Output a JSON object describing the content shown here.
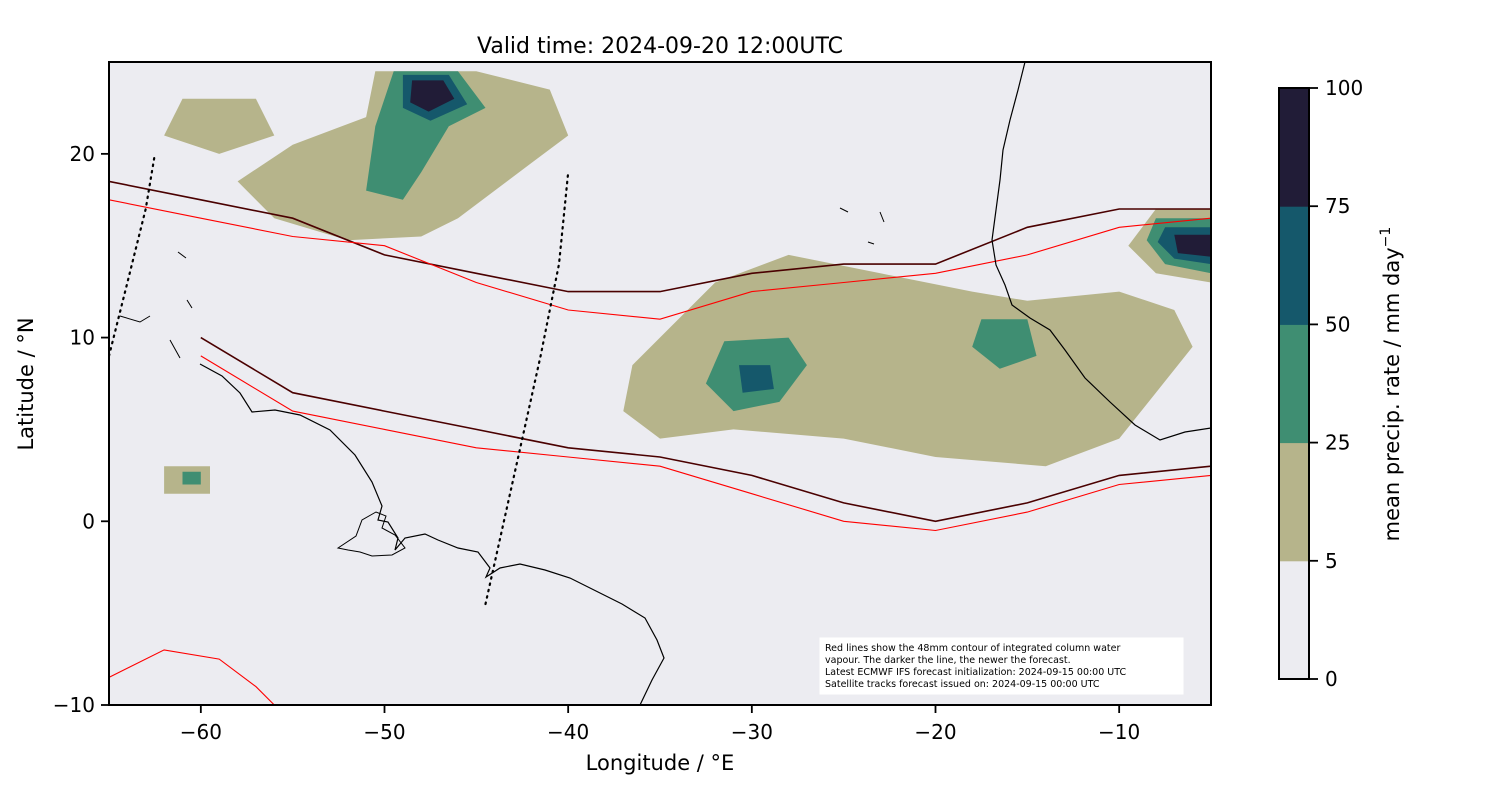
{
  "title": "Valid time: 2024-09-20 12:00UTC",
  "xlabel": "Longitude / °E",
  "ylabel": "Latitude / °N",
  "colorbar_label_main": "mean precip. rate / mm day",
  "colorbar_label_exp": "−1",
  "xlim": [
    -65,
    -5
  ],
  "ylim": [
    -10,
    25
  ],
  "x_ticks": [
    {
      "value": -60,
      "label": "−60"
    },
    {
      "value": -50,
      "label": "−50"
    },
    {
      "value": -40,
      "label": "−40"
    },
    {
      "value": -30,
      "label": "−30"
    },
    {
      "value": -20,
      "label": "−20"
    },
    {
      "value": -10,
      "label": "−10"
    }
  ],
  "y_ticks": [
    {
      "value": -10,
      "label": "−10"
    },
    {
      "value": 0,
      "label": "0"
    },
    {
      "value": 10,
      "label": "10"
    },
    {
      "value": 20,
      "label": "20"
    }
  ],
  "colorbar": {
    "levels": [
      0,
      5,
      25,
      50,
      75,
      100
    ],
    "tick_labels": [
      "0",
      "5",
      "25",
      "50",
      "75",
      "100"
    ],
    "colors": [
      "#ececf1",
      "#b6b48b",
      "#3f8e72",
      "#15586b",
      "#211c37"
    ]
  },
  "note_lines": [
    "Red lines show the 48mm contour of integrated column water",
    "vapour. The darker the line, the newer the forecast.",
    "Latest ECMWF IFS forecast initialization: 2024-09-15 00:00 UTC",
    "Satellite tracks forecast issued on: 2024-09-15 00:00 UTC"
  ],
  "colors": {
    "background": "#ececf1",
    "coast": "#000000",
    "iwv_new": "#4a0000",
    "iwv_old": "#ff0000",
    "track": "#000000"
  },
  "chart_data": {
    "type": "map-contour",
    "variable": "mean precip. rate",
    "units": "mm day^-1",
    "levels": [
      0,
      5,
      25,
      50,
      75,
      100
    ],
    "precip_regions": [
      {
        "level": 5,
        "points": [
          [
            -50.5,
            24.5
          ],
          [
            -45,
            24.5
          ],
          [
            -41,
            23.5
          ],
          [
            -40,
            21
          ],
          [
            -42,
            19.5
          ],
          [
            -44,
            18
          ],
          [
            -46,
            16.5
          ],
          [
            -48,
            15.5
          ],
          [
            -52,
            15.3
          ],
          [
            -56,
            16.5
          ],
          [
            -58,
            18.5
          ],
          [
            -55,
            20.5
          ],
          [
            -51,
            22
          ]
        ]
      },
      {
        "level": 5,
        "points": [
          [
            -61,
            23
          ],
          [
            -57,
            23
          ],
          [
            -56,
            21
          ],
          [
            -59,
            20
          ],
          [
            -62,
            21
          ]
        ]
      },
      {
        "level": 5,
        "points": [
          [
            -36.5,
            8.5
          ],
          [
            -32,
            13
          ],
          [
            -28,
            14.5
          ],
          [
            -23,
            13.5
          ],
          [
            -18,
            12.5
          ],
          [
            -15,
            12
          ],
          [
            -10,
            12.5
          ],
          [
            -7,
            11.5
          ],
          [
            -6,
            9.5
          ],
          [
            -8,
            7
          ],
          [
            -10,
            4.5
          ],
          [
            -14,
            3
          ],
          [
            -20,
            3.5
          ],
          [
            -25,
            4.5
          ],
          [
            -31,
            5
          ],
          [
            -35,
            4.5
          ],
          [
            -37,
            6
          ]
        ]
      },
      {
        "level": 5,
        "points": [
          [
            -8,
            17
          ],
          [
            -5,
            17
          ],
          [
            -5,
            13
          ],
          [
            -8,
            13.5
          ],
          [
            -9.5,
            15
          ]
        ]
      },
      {
        "level": 5,
        "points": [
          [
            -62,
            3
          ],
          [
            -59.5,
            3
          ],
          [
            -59.5,
            1.5
          ],
          [
            -62,
            1.5
          ]
        ]
      },
      {
        "level": 25,
        "points": [
          [
            -49.5,
            24.5
          ],
          [
            -46,
            24.5
          ],
          [
            -44.5,
            22.5
          ],
          [
            -46.5,
            21.5
          ],
          [
            -48,
            19
          ],
          [
            -49,
            17.5
          ],
          [
            -51,
            18
          ],
          [
            -50.5,
            21.5
          ]
        ]
      },
      {
        "level": 25,
        "points": [
          [
            -31.5,
            9.8
          ],
          [
            -28,
            10
          ],
          [
            -27,
            8.5
          ],
          [
            -28.5,
            6.5
          ],
          [
            -31,
            6
          ],
          [
            -32.5,
            7.5
          ]
        ]
      },
      {
        "level": 25,
        "points": [
          [
            -17.5,
            11
          ],
          [
            -15,
            11
          ],
          [
            -14.5,
            9
          ],
          [
            -16.5,
            8.3
          ],
          [
            -18,
            9.5
          ]
        ]
      },
      {
        "level": 25,
        "points": [
          [
            -8,
            16.5
          ],
          [
            -5,
            16.5
          ],
          [
            -5,
            13.5
          ],
          [
            -7.5,
            14
          ],
          [
            -8.5,
            15.3
          ]
        ]
      },
      {
        "level": 25,
        "points": [
          [
            -61,
            2.7
          ],
          [
            -60,
            2.7
          ],
          [
            -60,
            2
          ],
          [
            -61,
            2
          ]
        ]
      },
      {
        "level": 50,
        "points": [
          [
            -49,
            24.3
          ],
          [
            -46.5,
            24.3
          ],
          [
            -45.5,
            22.7
          ],
          [
            -47.5,
            21.8
          ],
          [
            -49,
            22.5
          ]
        ]
      },
      {
        "level": 50,
        "points": [
          [
            -30.7,
            8.5
          ],
          [
            -29,
            8.5
          ],
          [
            -28.8,
            7.2
          ],
          [
            -30.5,
            7
          ]
        ]
      },
      {
        "level": 50,
        "points": [
          [
            -7.5,
            16
          ],
          [
            -5,
            16
          ],
          [
            -5,
            14
          ],
          [
            -7,
            14.3
          ],
          [
            -7.9,
            15.2
          ]
        ]
      },
      {
        "level": 75,
        "points": [
          [
            -48.5,
            24
          ],
          [
            -46.8,
            24
          ],
          [
            -46.2,
            23
          ],
          [
            -47.6,
            22.3
          ],
          [
            -48.6,
            22.8
          ]
        ]
      },
      {
        "level": 75,
        "points": [
          [
            -7,
            15.6
          ],
          [
            -5,
            15.6
          ],
          [
            -5,
            14.4
          ],
          [
            -6.8,
            14.6
          ]
        ]
      }
    ],
    "iwv_48mm_contours": [
      {
        "forecast": "latest",
        "points": [
          [
            -65,
            18.5
          ],
          [
            -60,
            17.5
          ],
          [
            -55,
            16.5
          ],
          [
            -50,
            14.5
          ],
          [
            -45,
            13.5
          ],
          [
            -40,
            12.5
          ],
          [
            -35,
            12.5
          ],
          [
            -30,
            13.5
          ],
          [
            -25,
            14
          ],
          [
            -20,
            14
          ],
          [
            -15,
            16
          ],
          [
            -10,
            17
          ],
          [
            -5,
            17
          ]
        ]
      },
      {
        "forecast": "latest",
        "points": [
          [
            -60,
            10
          ],
          [
            -55,
            7
          ],
          [
            -50,
            6
          ],
          [
            -45,
            5
          ],
          [
            -40,
            4
          ],
          [
            -35,
            3.5
          ],
          [
            -30,
            2.5
          ],
          [
            -25,
            1
          ],
          [
            -20,
            0
          ],
          [
            -15,
            1
          ],
          [
            -10,
            2.5
          ],
          [
            -5,
            3
          ]
        ]
      },
      {
        "forecast": "older",
        "points": [
          [
            -65,
            17.5
          ],
          [
            -60,
            16.5
          ],
          [
            -55,
            15.5
          ],
          [
            -50,
            15
          ],
          [
            -45,
            13
          ],
          [
            -40,
            11.5
          ],
          [
            -35,
            11
          ],
          [
            -30,
            12.5
          ],
          [
            -25,
            13
          ],
          [
            -20,
            13.5
          ],
          [
            -15,
            14.5
          ],
          [
            -10,
            16
          ],
          [
            -5,
            16.5
          ]
        ]
      },
      {
        "forecast": "older",
        "points": [
          [
            -60,
            9
          ],
          [
            -55,
            6
          ],
          [
            -50,
            5
          ],
          [
            -45,
            4
          ],
          [
            -40,
            3.5
          ],
          [
            -35,
            3
          ],
          [
            -30,
            1.5
          ],
          [
            -25,
            0
          ],
          [
            -20,
            -0.5
          ],
          [
            -15,
            0.5
          ],
          [
            -10,
            2
          ],
          [
            -5,
            2.5
          ]
        ]
      },
      {
        "forecast": "older",
        "points": [
          [
            -65,
            -8.5
          ],
          [
            -62,
            -7
          ],
          [
            -59,
            -7.5
          ],
          [
            -57,
            -9
          ],
          [
            -56,
            -10
          ]
        ]
      }
    ],
    "satellite_tracks": [
      {
        "points": [
          [
            -65,
            9
          ],
          [
            -64,
            13
          ],
          [
            -63,
            17
          ],
          [
            -62.5,
            20
          ]
        ]
      },
      {
        "points": [
          [
            -44.5,
            -4.5
          ],
          [
            -43.5,
            0
          ],
          [
            -42.5,
            4.5
          ],
          [
            -41.5,
            9
          ],
          [
            -40.5,
            14
          ],
          [
            -40,
            19
          ]
        ]
      }
    ]
  }
}
